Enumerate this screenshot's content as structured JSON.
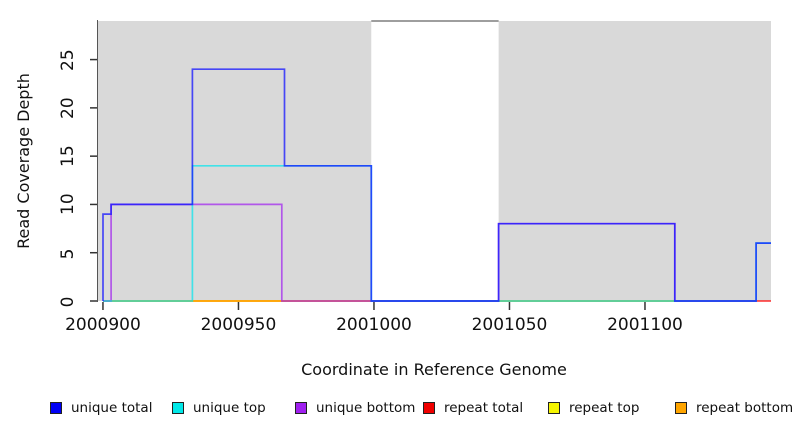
{
  "chart_data": {
    "type": "line",
    "subtype": "step-coverage",
    "title": "",
    "xlabel": "Coordinate in Reference Genome",
    "ylabel": "Read Coverage Depth",
    "x_range": [
      2000897.8,
      2001146.5
    ],
    "y_range": [
      0,
      29.1
    ],
    "grid": "off",
    "x_ticks": [
      {
        "value": 2000900,
        "label": "2000900"
      },
      {
        "value": 2000950,
        "label": "2000950"
      },
      {
        "value": 2001000,
        "label": "2001000"
      },
      {
        "value": 2001050,
        "label": "2001050"
      },
      {
        "value": 2001100,
        "label": "2001100"
      }
    ],
    "y_ticks": [
      {
        "value": 0,
        "label": "0"
      },
      {
        "value": 5,
        "label": "5"
      },
      {
        "value": 10,
        "label": "10"
      },
      {
        "value": 15,
        "label": "15"
      },
      {
        "value": 20,
        "label": "20"
      },
      {
        "value": 25,
        "label": "25"
      }
    ],
    "background_regions": [
      {
        "name": "covered-region-left",
        "x0": 2000897.8,
        "x1": 2000999,
        "color": "#d9d9d9"
      },
      {
        "name": "covered-region-right",
        "x0": 2001046,
        "x1": 2001146.5,
        "color": "#d9d9d9"
      }
    ],
    "gap_region": {
      "name": "uncovered-gap",
      "x0": 2000999,
      "x1": 2001046,
      "top_line_color": "#9e9e9e"
    },
    "axis_color": "#333333",
    "plot_bg": "#ffffff",
    "series": [
      {
        "name": "repeat total",
        "color": "#ff0000",
        "opacity": 0.7,
        "points": [
          [
            2000900,
            0
          ],
          [
            2001146.5,
            0
          ]
        ]
      },
      {
        "name": "repeat top",
        "color": "#ffff00",
        "opacity": 0.7,
        "points": [
          [
            2000900,
            0
          ],
          [
            2001141,
            0
          ]
        ]
      },
      {
        "name": "repeat bottom",
        "color": "#ff9900",
        "opacity": 0.7,
        "points": [
          [
            2000900,
            0
          ],
          [
            2001141,
            0
          ]
        ]
      },
      {
        "name": "unique bottom",
        "color": "#a020f0",
        "opacity": 0.7,
        "points": [
          [
            2000900,
            0
          ],
          [
            2000903,
            0
          ],
          [
            2000903,
            10
          ],
          [
            2000966,
            10
          ],
          [
            2000966,
            0
          ],
          [
            2001046,
            0
          ],
          [
            2001046,
            8
          ],
          [
            2001111,
            8
          ],
          [
            2001111,
            0
          ],
          [
            2001141,
            0
          ]
        ]
      },
      {
        "name": "unique top",
        "color": "#00e5ee",
        "opacity": 0.7,
        "points": [
          [
            2000900,
            0
          ],
          [
            2000933,
            0
          ],
          [
            2000933,
            14
          ],
          [
            2000999,
            14
          ],
          [
            2000999,
            0
          ],
          [
            2001141,
            0
          ],
          [
            2001141,
            6
          ],
          [
            2001146.5,
            6
          ]
        ]
      },
      {
        "name": "unique total",
        "color": "#1414ff",
        "opacity": 0.75,
        "points": [
          [
            2000900,
            0
          ],
          [
            2000900,
            9
          ],
          [
            2000903,
            9
          ],
          [
            2000903,
            10
          ],
          [
            2000933,
            10
          ],
          [
            2000933,
            24
          ],
          [
            2000967,
            24
          ],
          [
            2000967,
            14
          ],
          [
            2000999,
            14
          ],
          [
            2000999,
            0
          ],
          [
            2001046,
            0
          ],
          [
            2001046,
            8
          ],
          [
            2001111,
            8
          ],
          [
            2001111,
            0
          ],
          [
            2001141,
            0
          ],
          [
            2001141,
            6
          ],
          [
            2001146.5,
            6
          ]
        ]
      }
    ],
    "legend": [
      {
        "label": "unique total",
        "color": "#0000f5"
      },
      {
        "label": "unique top",
        "color": "#00e8e8"
      },
      {
        "label": "unique bottom",
        "color": "#a020f0"
      },
      {
        "label": "repeat total",
        "color": "#f00000"
      },
      {
        "label": "repeat top",
        "color": "#f5f500"
      },
      {
        "label": "repeat bottom",
        "color": "#ffa500"
      }
    ],
    "legend_position": "bottom"
  }
}
